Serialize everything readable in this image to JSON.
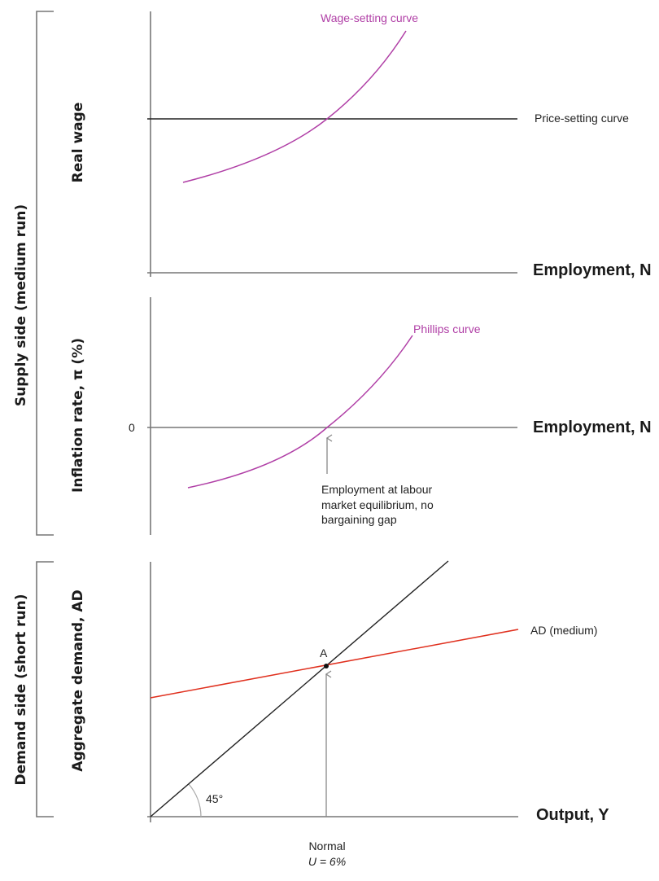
{
  "brackets": {
    "supply": "Supply side (medium run)",
    "demand": "Demand side (short run)"
  },
  "panel_top": {
    "y_label": "Real wage",
    "x_label": "Employment, N",
    "wage_setting_label": "Wage-setting curve",
    "price_setting_label": "Price-setting curve"
  },
  "panel_middle": {
    "y_label": "Inflation rate, π (%)",
    "x_label": "Employment, N",
    "zero_tick": "0",
    "phillips_label": "Phillips curve",
    "annotation": [
      "Employment at labour",
      "market equilibrium, no",
      "bargaining gap"
    ]
  },
  "panel_bottom": {
    "y_label": "Aggregate demand, AD",
    "x_label": "Output, Y",
    "ad_label": "AD (medium)",
    "point_label": "A",
    "angle_label": "45°",
    "x_tick_line1": "Normal",
    "x_tick_line2": "U = 6%"
  },
  "colors": {
    "curve": "#b03fa6",
    "ad": "#e0301e",
    "axis": "#777777",
    "line": "#222222"
  }
}
